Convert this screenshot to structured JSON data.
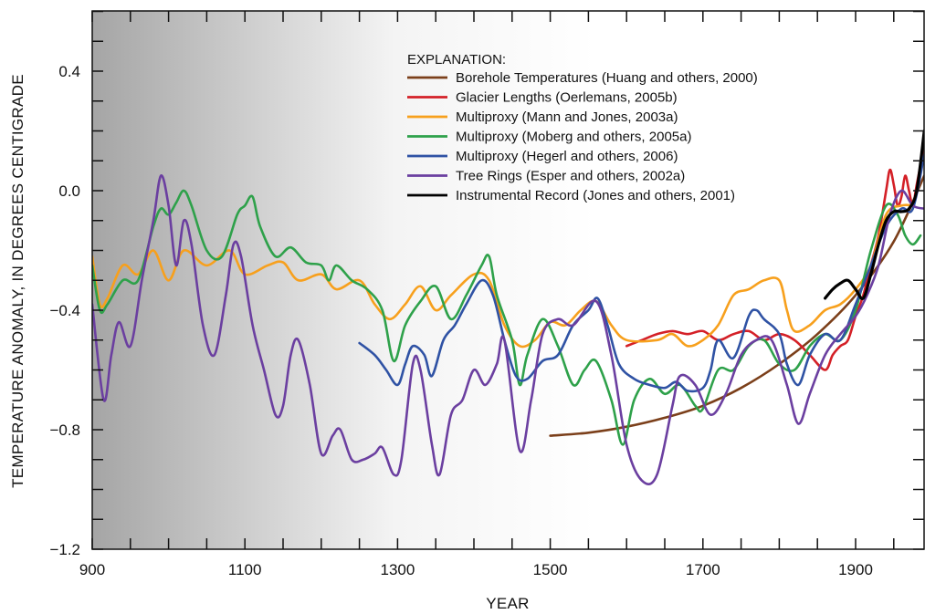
{
  "chart_data": {
    "type": "line",
    "title": "",
    "xlabel": "YEAR",
    "ylabel": "TEMPERATURE ANOMALY, IN DEGREES CENTIGRADE",
    "xlim": [
      900,
      1990
    ],
    "ylim": [
      -1.2,
      0.6
    ],
    "x_ticks": [
      "900",
      "1100",
      "1300",
      "1500",
      "1700",
      "1900"
    ],
    "y_ticks": [
      "0.4",
      "0.0",
      "−0.4",
      "−0.8",
      "−1.2"
    ],
    "y_tick_values": [
      0.4,
      0.0,
      -0.4,
      -0.8,
      -1.2
    ],
    "x_tick_values": [
      900,
      1100,
      1300,
      1500,
      1700,
      1900
    ],
    "background_gradient": {
      "from": "#a9a9a9",
      "to": "#ffffff",
      "x_start": 900,
      "x_end": 1560
    },
    "legend": {
      "title": "EXPLANATION:",
      "placement": "top-right"
    },
    "series": [
      {
        "name": "Borehole Temperatures (Huang and others, 2000)",
        "color": "#7b3f1a",
        "points": [
          [
            1500,
            -0.82
          ],
          [
            1550,
            -0.81
          ],
          [
            1600,
            -0.79
          ],
          [
            1650,
            -0.76
          ],
          [
            1700,
            -0.72
          ],
          [
            1750,
            -0.66
          ],
          [
            1800,
            -0.58
          ],
          [
            1850,
            -0.48
          ],
          [
            1900,
            -0.35
          ],
          [
            1950,
            -0.17
          ],
          [
            1990,
            0.05
          ]
        ]
      },
      {
        "name": "Glacier Lengths (Oerlemans, 2005b)",
        "color": "#d42027",
        "points": [
          [
            1600,
            -0.52
          ],
          [
            1620,
            -0.5
          ],
          [
            1640,
            -0.48
          ],
          [
            1660,
            -0.47
          ],
          [
            1680,
            -0.48
          ],
          [
            1700,
            -0.47
          ],
          [
            1720,
            -0.5
          ],
          [
            1740,
            -0.48
          ],
          [
            1760,
            -0.47
          ],
          [
            1780,
            -0.5
          ],
          [
            1800,
            -0.48
          ],
          [
            1820,
            -0.5
          ],
          [
            1840,
            -0.55
          ],
          [
            1860,
            -0.6
          ],
          [
            1870,
            -0.55
          ],
          [
            1880,
            -0.52
          ],
          [
            1890,
            -0.5
          ],
          [
            1900,
            -0.42
          ],
          [
            1910,
            -0.35
          ],
          [
            1920,
            -0.25
          ],
          [
            1930,
            -0.15
          ],
          [
            1940,
            0.0
          ],
          [
            1945,
            0.07
          ],
          [
            1950,
            0.02
          ],
          [
            1955,
            -0.05
          ],
          [
            1960,
            -0.02
          ],
          [
            1965,
            0.05
          ],
          [
            1970,
            0.0
          ],
          [
            1975,
            -0.05
          ],
          [
            1980,
            0.02
          ],
          [
            1990,
            0.15
          ]
        ]
      },
      {
        "name": "Multiproxy (Mann and Jones, 2003a)",
        "color": "#f7a01d",
        "points": [
          [
            900,
            -0.22
          ],
          [
            910,
            -0.38
          ],
          [
            920,
            -0.36
          ],
          [
            940,
            -0.25
          ],
          [
            960,
            -0.28
          ],
          [
            980,
            -0.2
          ],
          [
            1000,
            -0.3
          ],
          [
            1020,
            -0.2
          ],
          [
            1050,
            -0.25
          ],
          [
            1080,
            -0.2
          ],
          [
            1100,
            -0.28
          ],
          [
            1130,
            -0.25
          ],
          [
            1150,
            -0.24
          ],
          [
            1170,
            -0.3
          ],
          [
            1200,
            -0.28
          ],
          [
            1220,
            -0.33
          ],
          [
            1250,
            -0.3
          ],
          [
            1270,
            -0.38
          ],
          [
            1290,
            -0.43
          ],
          [
            1310,
            -0.38
          ],
          [
            1330,
            -0.32
          ],
          [
            1350,
            -0.4
          ],
          [
            1370,
            -0.35
          ],
          [
            1400,
            -0.28
          ],
          [
            1420,
            -0.3
          ],
          [
            1440,
            -0.45
          ],
          [
            1460,
            -0.52
          ],
          [
            1480,
            -0.5
          ],
          [
            1500,
            -0.44
          ],
          [
            1520,
            -0.45
          ],
          [
            1540,
            -0.4
          ],
          [
            1560,
            -0.37
          ],
          [
            1580,
            -0.45
          ],
          [
            1600,
            -0.5
          ],
          [
            1640,
            -0.5
          ],
          [
            1660,
            -0.48
          ],
          [
            1680,
            -0.52
          ],
          [
            1700,
            -0.5
          ],
          [
            1720,
            -0.45
          ],
          [
            1740,
            -0.35
          ],
          [
            1760,
            -0.33
          ],
          [
            1780,
            -0.3
          ],
          [
            1800,
            -0.3
          ],
          [
            1810,
            -0.4
          ],
          [
            1820,
            -0.47
          ],
          [
            1840,
            -0.45
          ],
          [
            1860,
            -0.4
          ],
          [
            1880,
            -0.38
          ],
          [
            1900,
            -0.33
          ],
          [
            1920,
            -0.25
          ],
          [
            1940,
            -0.08
          ],
          [
            1960,
            -0.05
          ],
          [
            1975,
            -0.05
          ]
        ]
      },
      {
        "name": "Multiproxy (Moberg and others, 2005a)",
        "color": "#2ea14a",
        "points": [
          [
            900,
            -0.25
          ],
          [
            910,
            -0.4
          ],
          [
            920,
            -0.38
          ],
          [
            940,
            -0.3
          ],
          [
            960,
            -0.3
          ],
          [
            980,
            -0.12
          ],
          [
            990,
            -0.06
          ],
          [
            1000,
            -0.08
          ],
          [
            1010,
            -0.04
          ],
          [
            1020,
            0.0
          ],
          [
            1030,
            -0.05
          ],
          [
            1050,
            -0.2
          ],
          [
            1070,
            -0.22
          ],
          [
            1090,
            -0.08
          ],
          [
            1100,
            -0.05
          ],
          [
            1110,
            -0.02
          ],
          [
            1120,
            -0.12
          ],
          [
            1140,
            -0.22
          ],
          [
            1160,
            -0.19
          ],
          [
            1180,
            -0.24
          ],
          [
            1200,
            -0.25
          ],
          [
            1210,
            -0.3
          ],
          [
            1220,
            -0.25
          ],
          [
            1240,
            -0.3
          ],
          [
            1260,
            -0.33
          ],
          [
            1280,
            -0.4
          ],
          [
            1295,
            -0.57
          ],
          [
            1310,
            -0.45
          ],
          [
            1330,
            -0.37
          ],
          [
            1350,
            -0.32
          ],
          [
            1370,
            -0.43
          ],
          [
            1390,
            -0.35
          ],
          [
            1410,
            -0.25
          ],
          [
            1420,
            -0.22
          ],
          [
            1430,
            -0.35
          ],
          [
            1450,
            -0.5
          ],
          [
            1460,
            -0.65
          ],
          [
            1470,
            -0.55
          ],
          [
            1490,
            -0.43
          ],
          [
            1510,
            -0.52
          ],
          [
            1530,
            -0.65
          ],
          [
            1545,
            -0.6
          ],
          [
            1560,
            -0.57
          ],
          [
            1580,
            -0.7
          ],
          [
            1595,
            -0.85
          ],
          [
            1610,
            -0.7
          ],
          [
            1630,
            -0.63
          ],
          [
            1650,
            -0.68
          ],
          [
            1670,
            -0.65
          ],
          [
            1690,
            -0.72
          ],
          [
            1700,
            -0.73
          ],
          [
            1720,
            -0.6
          ],
          [
            1740,
            -0.6
          ],
          [
            1760,
            -0.52
          ],
          [
            1780,
            -0.5
          ],
          [
            1800,
            -0.58
          ],
          [
            1820,
            -0.6
          ],
          [
            1840,
            -0.52
          ],
          [
            1860,
            -0.48
          ],
          [
            1880,
            -0.5
          ],
          [
            1900,
            -0.4
          ],
          [
            1920,
            -0.2
          ],
          [
            1940,
            -0.05
          ],
          [
            1955,
            -0.08
          ],
          [
            1965,
            -0.15
          ],
          [
            1975,
            -0.18
          ],
          [
            1985,
            -0.15
          ]
        ]
      },
      {
        "name": "Multiproxy (Hegerl and others, 2006)",
        "color": "#2f52a4",
        "points": [
          [
            1250,
            -0.51
          ],
          [
            1270,
            -0.55
          ],
          [
            1285,
            -0.6
          ],
          [
            1300,
            -0.65
          ],
          [
            1310,
            -0.58
          ],
          [
            1320,
            -0.52
          ],
          [
            1335,
            -0.55
          ],
          [
            1345,
            -0.62
          ],
          [
            1360,
            -0.5
          ],
          [
            1375,
            -0.45
          ],
          [
            1390,
            -0.38
          ],
          [
            1410,
            -0.3
          ],
          [
            1425,
            -0.35
          ],
          [
            1440,
            -0.5
          ],
          [
            1455,
            -0.62
          ],
          [
            1470,
            -0.63
          ],
          [
            1490,
            -0.57
          ],
          [
            1510,
            -0.55
          ],
          [
            1530,
            -0.45
          ],
          [
            1550,
            -0.4
          ],
          [
            1562,
            -0.36
          ],
          [
            1575,
            -0.45
          ],
          [
            1590,
            -0.58
          ],
          [
            1610,
            -0.63
          ],
          [
            1630,
            -0.65
          ],
          [
            1650,
            -0.66
          ],
          [
            1665,
            -0.64
          ],
          [
            1680,
            -0.67
          ],
          [
            1700,
            -0.66
          ],
          [
            1710,
            -0.6
          ],
          [
            1720,
            -0.5
          ],
          [
            1740,
            -0.56
          ],
          [
            1760,
            -0.42
          ],
          [
            1770,
            -0.4
          ],
          [
            1780,
            -0.43
          ],
          [
            1800,
            -0.48
          ],
          [
            1810,
            -0.58
          ],
          [
            1825,
            -0.65
          ],
          [
            1840,
            -0.55
          ],
          [
            1860,
            -0.48
          ],
          [
            1880,
            -0.5
          ],
          [
            1900,
            -0.38
          ],
          [
            1920,
            -0.25
          ],
          [
            1940,
            -0.12
          ],
          [
            1960,
            -0.06
          ],
          [
            1975,
            -0.06
          ],
          [
            1990,
            0.12
          ]
        ]
      },
      {
        "name": "Tree Rings (Esper and others, 2002a)",
        "color": "#6b3fa0",
        "points": [
          [
            900,
            -0.38
          ],
          [
            915,
            -0.7
          ],
          [
            925,
            -0.55
          ],
          [
            935,
            -0.44
          ],
          [
            950,
            -0.52
          ],
          [
            965,
            -0.3
          ],
          [
            980,
            -0.1
          ],
          [
            990,
            0.05
          ],
          [
            1000,
            -0.05
          ],
          [
            1010,
            -0.25
          ],
          [
            1020,
            -0.1
          ],
          [
            1030,
            -0.18
          ],
          [
            1045,
            -0.45
          ],
          [
            1060,
            -0.55
          ],
          [
            1075,
            -0.35
          ],
          [
            1085,
            -0.18
          ],
          [
            1095,
            -0.22
          ],
          [
            1110,
            -0.45
          ],
          [
            1125,
            -0.6
          ],
          [
            1140,
            -0.75
          ],
          [
            1150,
            -0.72
          ],
          [
            1160,
            -0.55
          ],
          [
            1170,
            -0.5
          ],
          [
            1185,
            -0.65
          ],
          [
            1200,
            -0.88
          ],
          [
            1215,
            -0.82
          ],
          [
            1225,
            -0.8
          ],
          [
            1240,
            -0.9
          ],
          [
            1255,
            -0.9
          ],
          [
            1270,
            -0.88
          ],
          [
            1280,
            -0.86
          ],
          [
            1295,
            -0.95
          ],
          [
            1305,
            -0.9
          ],
          [
            1320,
            -0.58
          ],
          [
            1330,
            -0.6
          ],
          [
            1345,
            -0.85
          ],
          [
            1355,
            -0.95
          ],
          [
            1370,
            -0.75
          ],
          [
            1385,
            -0.7
          ],
          [
            1400,
            -0.6
          ],
          [
            1415,
            -0.65
          ],
          [
            1430,
            -0.58
          ],
          [
            1440,
            -0.5
          ],
          [
            1460,
            -0.87
          ],
          [
            1475,
            -0.7
          ],
          [
            1490,
            -0.48
          ],
          [
            1510,
            -0.43
          ],
          [
            1530,
            -0.45
          ],
          [
            1560,
            -0.37
          ],
          [
            1580,
            -0.55
          ],
          [
            1600,
            -0.85
          ],
          [
            1620,
            -0.97
          ],
          [
            1640,
            -0.95
          ],
          [
            1660,
            -0.72
          ],
          [
            1670,
            -0.62
          ],
          [
            1690,
            -0.65
          ],
          [
            1710,
            -0.75
          ],
          [
            1730,
            -0.68
          ],
          [
            1750,
            -0.55
          ],
          [
            1770,
            -0.5
          ],
          [
            1790,
            -0.5
          ],
          [
            1810,
            -0.65
          ],
          [
            1825,
            -0.78
          ],
          [
            1840,
            -0.68
          ],
          [
            1860,
            -0.55
          ],
          [
            1880,
            -0.48
          ],
          [
            1900,
            -0.42
          ],
          [
            1915,
            -0.35
          ],
          [
            1930,
            -0.25
          ],
          [
            1945,
            -0.08
          ],
          [
            1960,
            0.0
          ],
          [
            1975,
            -0.05
          ],
          [
            1990,
            -0.06
          ]
        ]
      },
      {
        "name": "Instrumental Record (Jones and others, 2001)",
        "color": "#000000",
        "points": [
          [
            1860,
            -0.36
          ],
          [
            1870,
            -0.33
          ],
          [
            1880,
            -0.31
          ],
          [
            1890,
            -0.3
          ],
          [
            1900,
            -0.33
          ],
          [
            1910,
            -0.36
          ],
          [
            1920,
            -0.28
          ],
          [
            1930,
            -0.18
          ],
          [
            1940,
            -0.1
          ],
          [
            1950,
            -0.07
          ],
          [
            1960,
            -0.07
          ],
          [
            1970,
            -0.06
          ],
          [
            1980,
            0.0
          ],
          [
            1990,
            0.2
          ]
        ]
      }
    ]
  }
}
